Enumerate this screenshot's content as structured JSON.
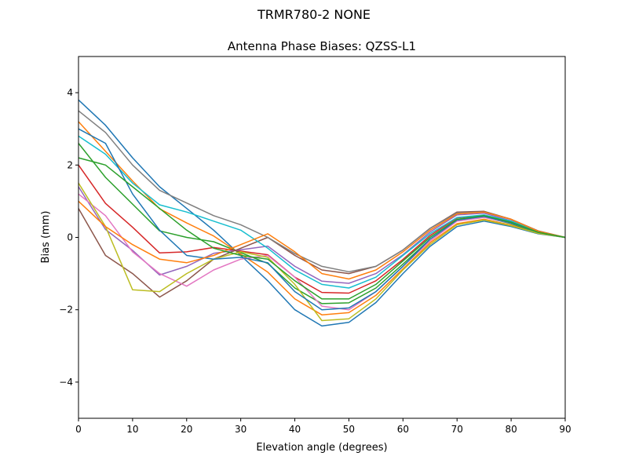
{
  "chart_data": {
    "type": "line",
    "suptitle": "TRMR780-2       NONE",
    "title": "Antenna Phase Biases: QZSS-L1",
    "xlabel": "Elevation angle (degrees)",
    "ylabel": "Bias (mm)",
    "xlim": [
      0,
      90
    ],
    "ylim": [
      -5,
      5
    ],
    "xticks": [
      0,
      10,
      20,
      30,
      40,
      50,
      60,
      70,
      80,
      90
    ],
    "yticks": [
      -4,
      -2,
      0,
      2,
      4
    ],
    "ytick_labels": [
      "−4",
      "−2",
      "0",
      "2",
      "4"
    ],
    "grid": false,
    "colors": [
      "#1f77b4",
      "#ff7f0e",
      "#2ca02c",
      "#d62728",
      "#9467bd",
      "#8c564b",
      "#e377c2",
      "#7f7f7f",
      "#bcbd22",
      "#17becf"
    ],
    "x": [
      0,
      5,
      10,
      15,
      20,
      25,
      30,
      35,
      40,
      45,
      50,
      55,
      60,
      65,
      70,
      75,
      80,
      85,
      90
    ],
    "series": [
      {
        "values": [
          3.8,
          3.1,
          2.2,
          1.4,
          0.8,
          0.2,
          -0.5,
          -1.2,
          -2.0,
          -2.45,
          -2.35,
          -1.8,
          -1.0,
          -0.25,
          0.3,
          0.45,
          0.3,
          0.1,
          0
        ]
      },
      {
        "values": [
          3.2,
          2.38,
          1.56,
          0.79,
          0.4,
          0.04,
          -0.46,
          -0.96,
          -1.7,
          -2.14,
          -2.08,
          -1.6,
          -0.87,
          -0.15,
          0.38,
          0.5,
          0.34,
          0.12,
          0
        ]
      },
      {
        "values": [
          2.6,
          1.66,
          0.92,
          0.18,
          0.0,
          -0.12,
          -0.42,
          -0.72,
          -1.4,
          -1.83,
          -1.81,
          -1.4,
          -0.74,
          -0.05,
          0.46,
          0.56,
          0.38,
          0.13,
          0
        ]
      },
      {
        "values": [
          2.0,
          0.94,
          0.28,
          -0.43,
          -0.4,
          -0.28,
          -0.38,
          -0.48,
          -1.1,
          -1.52,
          -1.54,
          -1.2,
          -0.61,
          0.05,
          0.54,
          0.61,
          0.42,
          0.15,
          0
        ]
      },
      {
        "values": [
          1.4,
          0.22,
          -0.36,
          -1.04,
          -0.8,
          -0.44,
          -0.34,
          -0.24,
          -0.8,
          -1.21,
          -1.27,
          -1.0,
          -0.48,
          0.15,
          0.62,
          0.67,
          0.46,
          0.16,
          0
        ]
      },
      {
        "values": [
          0.8,
          -0.5,
          -1.0,
          -1.65,
          -1.2,
          -0.6,
          -0.3,
          0.0,
          -0.5,
          -0.9,
          -1.0,
          -0.8,
          -0.35,
          0.25,
          0.7,
          0.72,
          0.5,
          0.18,
          0
        ]
      },
      {
        "values": [
          1.2,
          0.6,
          -0.4,
          -1.0,
          -1.35,
          -0.9,
          -0.6,
          -0.5,
          -1.1,
          -1.9,
          -2.0,
          -1.5,
          -0.8,
          -0.1,
          0.45,
          0.55,
          0.4,
          0.14,
          0
        ]
      },
      {
        "values": [
          3.5,
          2.9,
          2.0,
          1.3,
          0.95,
          0.6,
          0.35,
          0.0,
          -0.45,
          -0.8,
          -0.95,
          -0.8,
          -0.35,
          0.25,
          0.68,
          0.7,
          0.5,
          0.17,
          0
        ]
      },
      {
        "values": [
          1.5,
          0.3,
          -1.45,
          -1.5,
          -1.0,
          -0.6,
          -0.4,
          -0.55,
          -1.3,
          -2.3,
          -2.25,
          -1.7,
          -0.9,
          -0.2,
          0.35,
          0.48,
          0.32,
          0.11,
          0
        ]
      },
      {
        "values": [
          2.8,
          2.3,
          1.5,
          0.9,
          0.7,
          0.45,
          0.2,
          -0.3,
          -0.9,
          -1.3,
          -1.4,
          -1.1,
          -0.5,
          0.1,
          0.55,
          0.62,
          0.45,
          0.15,
          0
        ]
      },
      {
        "values": [
          3.0,
          2.6,
          1.2,
          0.2,
          -0.5,
          -0.6,
          -0.55,
          -0.7,
          -1.5,
          -2.0,
          -1.95,
          -1.5,
          -0.8,
          -0.05,
          0.48,
          0.58,
          0.4,
          0.14,
          0
        ]
      },
      {
        "values": [
          1.0,
          0.3,
          -0.2,
          -0.6,
          -0.7,
          -0.5,
          -0.2,
          0.1,
          -0.4,
          -1.0,
          -1.15,
          -0.9,
          -0.4,
          0.2,
          0.65,
          0.7,
          0.5,
          0.17,
          0
        ]
      },
      {
        "values": [
          2.2,
          2.0,
          1.4,
          0.8,
          0.2,
          -0.3,
          -0.5,
          -0.6,
          -1.2,
          -1.7,
          -1.7,
          -1.3,
          -0.65,
          0.0,
          0.5,
          0.6,
          0.42,
          0.14,
          0
        ]
      }
    ]
  }
}
